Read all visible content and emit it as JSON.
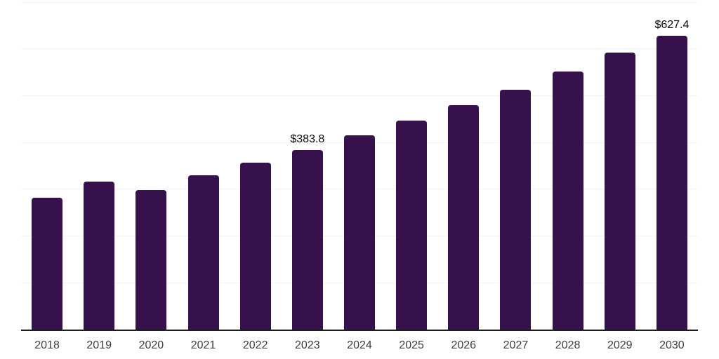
{
  "chart_data": {
    "type": "bar",
    "title": "",
    "xlabel": "",
    "ylabel": "",
    "categories": [
      "2018",
      "2019",
      "2020",
      "2021",
      "2022",
      "2023",
      "2024",
      "2025",
      "2026",
      "2027",
      "2028",
      "2029",
      "2030"
    ],
    "values": [
      282,
      316,
      299,
      330,
      357,
      383.8,
      415,
      446,
      479,
      512,
      551,
      592,
      627.4
    ],
    "data_labels": [
      "",
      "",
      "",
      "",
      "",
      "$383.8",
      "",
      "",
      "",
      "",
      "",
      "",
      "$627.4"
    ],
    "ylim": [
      0,
      700
    ],
    "grid_step": 100,
    "grid": "horizontal-only",
    "legend": "none",
    "colors": {
      "bar": "#36114B",
      "axis_line": "#1e1e1e",
      "gridline": "#f2f2f2",
      "tick_label": "#3c3c3c",
      "data_label": "#0a0a0a",
      "background": "#ffffff"
    }
  }
}
